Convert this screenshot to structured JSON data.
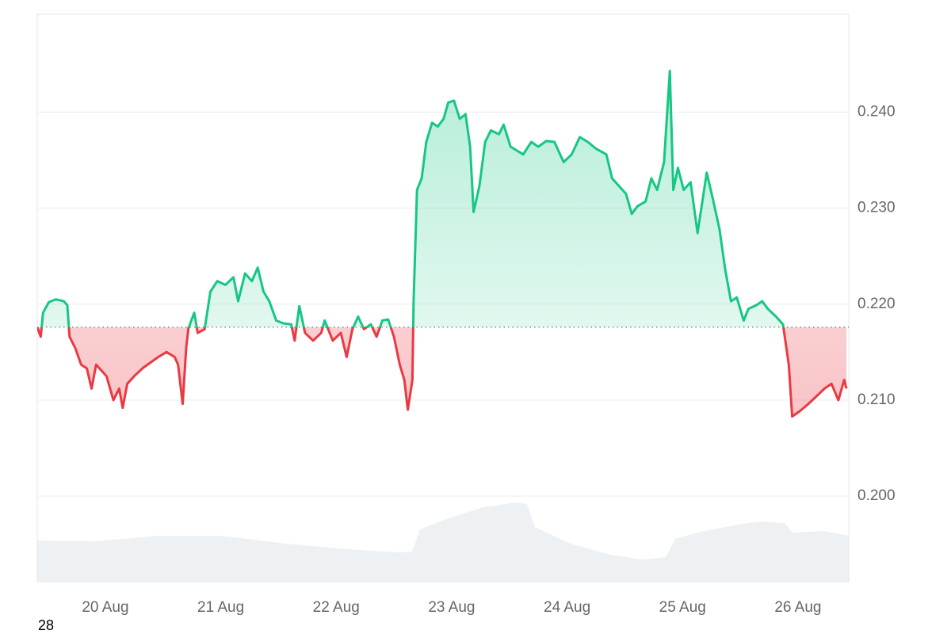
{
  "chart_data": {
    "type": "line",
    "x": [
      19.41,
      19.44,
      19.46,
      19.51,
      19.57,
      19.64,
      19.67,
      19.69,
      19.74,
      19.79,
      19.84,
      19.88,
      19.92,
      19.98,
      20.01,
      20.07,
      20.12,
      20.15,
      20.19,
      20.25,
      20.32,
      20.39,
      20.46,
      20.53,
      20.6,
      20.63,
      20.67,
      20.7,
      20.72,
      20.77,
      20.8,
      20.86,
      20.91,
      20.97,
      21.04,
      21.11,
      21.15,
      21.21,
      21.27,
      21.32,
      21.37,
      21.42,
      21.48,
      21.54,
      21.61,
      21.64,
      21.68,
      21.73,
      21.8,
      21.87,
      21.9,
      21.97,
      22.04,
      22.09,
      22.14,
      22.19,
      22.24,
      22.3,
      22.35,
      22.4,
      22.45,
      22.5,
      22.55,
      22.59,
      22.62,
      22.66,
      22.67,
      22.7,
      22.74,
      22.78,
      22.83,
      22.88,
      22.93,
      22.97,
      23.02,
      23.07,
      23.12,
      23.16,
      23.19,
      23.24,
      23.29,
      23.34,
      23.41,
      23.45,
      23.51,
      23.62,
      23.69,
      23.75,
      23.82,
      23.89,
      23.97,
      24.04,
      24.11,
      24.18,
      24.25,
      24.34,
      24.39,
      24.45,
      24.51,
      24.56,
      24.61,
      24.68,
      24.73,
      24.78,
      24.84,
      24.89,
      24.92,
      24.96,
      25.01,
      25.07,
      25.13,
      25.16,
      25.21,
      25.26,
      25.32,
      25.37,
      25.42,
      25.47,
      25.53,
      25.57,
      25.64,
      25.69,
      25.74,
      25.81,
      25.87,
      25.92,
      25.95,
      26.01,
      26.05,
      26.09,
      26.16,
      26.23,
      26.29,
      26.35,
      26.4,
      26.42
    ],
    "values": [
      0.2176,
      0.2166,
      0.2191,
      0.2202,
      0.2205,
      0.2203,
      0.2199,
      0.2166,
      0.2154,
      0.2137,
      0.2133,
      0.2112,
      0.2137,
      0.2129,
      0.2125,
      0.21,
      0.2112,
      0.2092,
      0.2117,
      0.2125,
      0.2133,
      0.2139,
      0.2145,
      0.215,
      0.2145,
      0.2137,
      0.2096,
      0.2154,
      0.2175,
      0.2191,
      0.217,
      0.2174,
      0.2213,
      0.2224,
      0.222,
      0.2228,
      0.2203,
      0.2232,
      0.2224,
      0.2238,
      0.2213,
      0.2203,
      0.2183,
      0.218,
      0.2179,
      0.2162,
      0.2198,
      0.217,
      0.2162,
      0.217,
      0.2183,
      0.2162,
      0.217,
      0.2145,
      0.2174,
      0.2187,
      0.2174,
      0.2179,
      0.2166,
      0.2183,
      0.2184,
      0.2166,
      0.2137,
      0.2121,
      0.209,
      0.2121,
      0.2203,
      0.2319,
      0.2331,
      0.2369,
      0.2389,
      0.2385,
      0.2393,
      0.241,
      0.2412,
      0.2393,
      0.2398,
      0.2364,
      0.2296,
      0.2323,
      0.2369,
      0.2381,
      0.2377,
      0.2387,
      0.2364,
      0.2356,
      0.2369,
      0.2364,
      0.237,
      0.2369,
      0.2348,
      0.2356,
      0.2374,
      0.2369,
      0.2362,
      0.2356,
      0.2331,
      0.2323,
      0.2315,
      0.2294,
      0.2302,
      0.2307,
      0.2331,
      0.2319,
      0.2348,
      0.2443,
      0.2319,
      0.2342,
      0.2319,
      0.2327,
      0.2274,
      0.2298,
      0.2337,
      0.2311,
      0.2278,
      0.2236,
      0.2203,
      0.2207,
      0.2183,
      0.2195,
      0.2199,
      0.2203,
      0.2195,
      0.2187,
      0.2179,
      0.2137,
      0.2083,
      0.2088,
      0.2092,
      0.2096,
      0.2104,
      0.2112,
      0.2117,
      0.21,
      0.2121,
      0.2112
    ],
    "baseline": 0.2176,
    "up_color": "#16c784",
    "down_color": "#ea3943",
    "xlim": [
      19.41,
      26.44
    ],
    "xticks": [
      {
        "value": 20,
        "label": "20 Aug"
      },
      {
        "value": 21,
        "label": "21 Aug"
      },
      {
        "value": 22,
        "label": "22 Aug"
      },
      {
        "value": 23,
        "label": "23 Aug"
      },
      {
        "value": 24,
        "label": "24 Aug"
      },
      {
        "value": 25,
        "label": "25 Aug"
      },
      {
        "value": 26,
        "label": "26 Aug"
      }
    ],
    "ylim": [
      0.191,
      0.2502
    ],
    "yticks": [
      {
        "value": 0.2,
        "label": "0.200"
      },
      {
        "value": 0.21,
        "label": "0.210"
      },
      {
        "value": 0.22,
        "label": "0.220"
      },
      {
        "value": 0.23,
        "label": "0.230"
      },
      {
        "value": 0.24,
        "label": "0.240"
      }
    ],
    "grid": true,
    "footnote": "28"
  }
}
